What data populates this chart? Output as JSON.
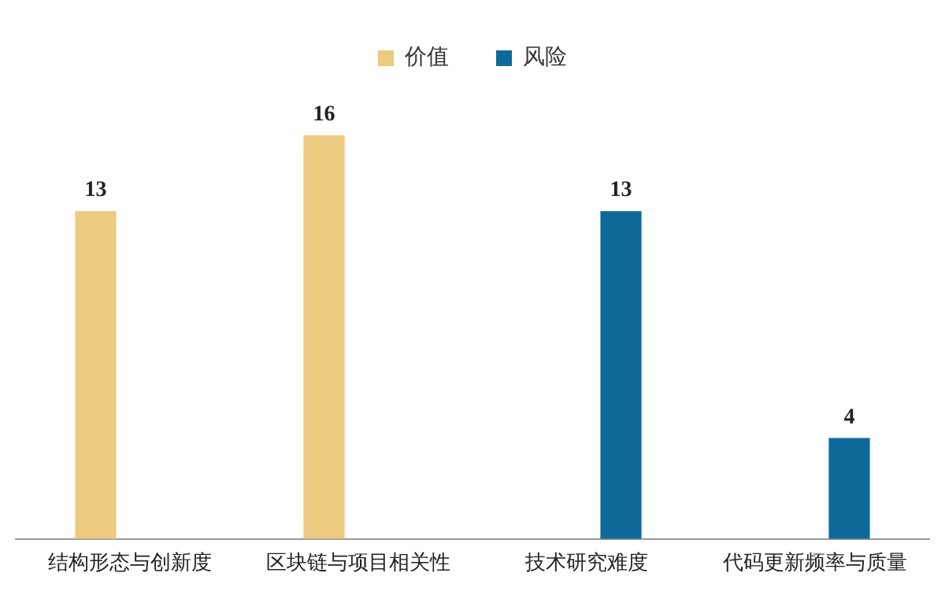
{
  "chart_data": {
    "type": "bar",
    "categories": [
      "结构形态与创新度",
      "区块链与项目相关性",
      "技术研究难度",
      "代码更新频率与质量"
    ],
    "series": [
      {
        "name": "价值",
        "color": "#ecca80",
        "values": [
          13,
          16,
          null,
          null
        ]
      },
      {
        "name": "风险",
        "color": "#0f6a99",
        "values": [
          null,
          null,
          13,
          4
        ]
      }
    ],
    "data_labels": true,
    "legend": "top",
    "grid": false
  }
}
